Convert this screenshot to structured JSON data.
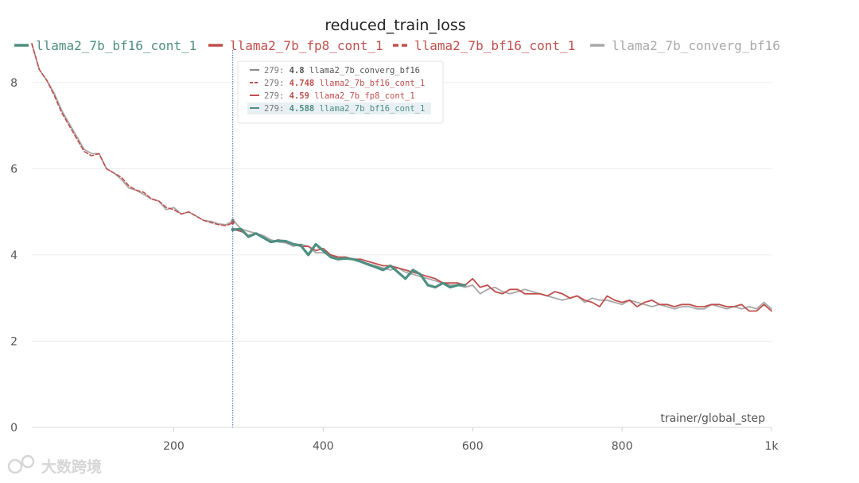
{
  "chart_data": {
    "type": "line",
    "title": "reduced_train_loss",
    "xlabel": "trainer/global_step",
    "ylabel": "",
    "xlim": [
      10,
      1000
    ],
    "ylim": [
      0,
      8.9
    ],
    "xticks": [
      200,
      400,
      600,
      800,
      1000
    ],
    "xtick_labels": [
      "200",
      "400",
      "600",
      "800",
      "1k"
    ],
    "yticks": [
      0,
      2,
      4,
      6,
      8
    ],
    "ytick_labels": [
      "0",
      "2",
      "4",
      "6",
      "8"
    ],
    "grid": true,
    "legend_position": "top",
    "series": [
      {
        "name": "llama2_7b_converg_bf16",
        "color": "#a9a9a9",
        "dash": "solid",
        "x": [
          10,
          20,
          30,
          40,
          50,
          60,
          70,
          80,
          90,
          100,
          110,
          120,
          130,
          140,
          150,
          160,
          170,
          180,
          190,
          200,
          210,
          220,
          230,
          240,
          250,
          260,
          270,
          280,
          290,
          300,
          310,
          320,
          330,
          340,
          350,
          360,
          370,
          380,
          390,
          400,
          410,
          420,
          430,
          440,
          450,
          460,
          470,
          480,
          490,
          500,
          510,
          520,
          530,
          540,
          550,
          560,
          570,
          580,
          590,
          600,
          610,
          620,
          630,
          640,
          650,
          660,
          670,
          680,
          690,
          700,
          710,
          720,
          730,
          740,
          750,
          760,
          770,
          780,
          790,
          800,
          810,
          820,
          830,
          840,
          850,
          860,
          870,
          880,
          890,
          900,
          910,
          920,
          930,
          940,
          950,
          960,
          970,
          980,
          990,
          1000
        ],
        "y": [
          8.9,
          8.3,
          8.05,
          7.75,
          7.35,
          7.05,
          6.75,
          6.45,
          6.35,
          6.35,
          6.0,
          5.9,
          5.75,
          5.55,
          5.5,
          5.4,
          5.3,
          5.25,
          5.05,
          5.1,
          4.95,
          5.0,
          4.9,
          4.8,
          4.78,
          4.72,
          4.7,
          4.8,
          4.6,
          4.55,
          4.5,
          4.45,
          4.35,
          4.3,
          4.28,
          4.2,
          4.25,
          4.2,
          4.05,
          4.05,
          4.0,
          3.95,
          3.95,
          3.9,
          3.85,
          3.8,
          3.75,
          3.7,
          3.65,
          3.7,
          3.6,
          3.55,
          3.5,
          3.45,
          3.4,
          3.35,
          3.3,
          3.3,
          3.25,
          3.3,
          3.1,
          3.2,
          3.25,
          3.15,
          3.1,
          3.15,
          3.2,
          3.15,
          3.1,
          3.05,
          3.0,
          2.95,
          3.0,
          3.05,
          2.9,
          3.0,
          2.95,
          2.95,
          2.9,
          2.85,
          2.95,
          2.9,
          2.85,
          2.8,
          2.85,
          2.8,
          2.75,
          2.8,
          2.8,
          2.75,
          2.75,
          2.85,
          2.8,
          2.75,
          2.8,
          2.75,
          2.8,
          2.75,
          2.9,
          2.75
        ]
      },
      {
        "name": "llama2_7b_bf16_cont_1",
        "color": "#c0504d",
        "dash": "dashed",
        "x": [
          10,
          20,
          30,
          40,
          50,
          60,
          70,
          80,
          90,
          100,
          110,
          120,
          130,
          140,
          150,
          160,
          170,
          180,
          190,
          200,
          210,
          220,
          230,
          240,
          250,
          260,
          270,
          280
        ],
        "y": [
          8.9,
          8.3,
          8.05,
          7.7,
          7.3,
          7.0,
          6.7,
          6.4,
          6.3,
          6.35,
          6.0,
          5.9,
          5.8,
          5.6,
          5.5,
          5.45,
          5.3,
          5.25,
          5.1,
          5.05,
          4.95,
          5.0,
          4.9,
          4.8,
          4.75,
          4.7,
          4.68,
          4.748
        ]
      },
      {
        "name": "llama2_7b_fp8_cont_1",
        "color": "#c0504d",
        "dash": "solid",
        "x": [
          279,
          290,
          300,
          310,
          320,
          330,
          340,
          350,
          360,
          370,
          380,
          390,
          400,
          410,
          420,
          430,
          440,
          450,
          460,
          470,
          480,
          490,
          500,
          510,
          520,
          530,
          540,
          550,
          560,
          570,
          580,
          590,
          600,
          610,
          620,
          630,
          640,
          650,
          660,
          670,
          680,
          690,
          700,
          710,
          720,
          730,
          740,
          750,
          760,
          770,
          780,
          790,
          800,
          810,
          820,
          830,
          840,
          850,
          860,
          870,
          880,
          890,
          900,
          910,
          920,
          930,
          940,
          950,
          960,
          970,
          980,
          990,
          1000
        ],
        "y": [
          4.59,
          4.55,
          4.45,
          4.5,
          4.4,
          4.3,
          4.35,
          4.3,
          4.25,
          4.2,
          4.2,
          4.1,
          4.15,
          4.0,
          3.95,
          3.95,
          3.9,
          3.9,
          3.85,
          3.8,
          3.75,
          3.75,
          3.7,
          3.65,
          3.6,
          3.55,
          3.5,
          3.45,
          3.35,
          3.35,
          3.35,
          3.3,
          3.45,
          3.25,
          3.3,
          3.15,
          3.1,
          3.2,
          3.2,
          3.1,
          3.1,
          3.1,
          3.05,
          3.15,
          3.1,
          3.0,
          3.05,
          2.95,
          2.9,
          2.8,
          3.05,
          2.95,
          2.9,
          2.95,
          2.8,
          2.9,
          2.95,
          2.85,
          2.85,
          2.8,
          2.85,
          2.85,
          2.8,
          2.8,
          2.85,
          2.85,
          2.8,
          2.8,
          2.85,
          2.7,
          2.7,
          2.85,
          2.7
        ]
      },
      {
        "name": "llama2_7b_bf16_cont_1",
        "color": "#4e8f82",
        "dash": "solid",
        "x": [
          279,
          290,
          300,
          310,
          320,
          330,
          340,
          350,
          360,
          370,
          380,
          390,
          400,
          410,
          420,
          430,
          440,
          450,
          460,
          470,
          480,
          490,
          500,
          510,
          520,
          530,
          540,
          550,
          560,
          570,
          580,
          590
        ],
        "y": [
          4.588,
          4.6,
          4.42,
          4.5,
          4.4,
          4.3,
          4.33,
          4.32,
          4.25,
          4.22,
          4.0,
          4.25,
          4.1,
          3.95,
          3.9,
          3.92,
          3.9,
          3.85,
          3.78,
          3.72,
          3.65,
          3.75,
          3.6,
          3.45,
          3.65,
          3.55,
          3.3,
          3.25,
          3.35,
          3.25,
          3.3,
          3.3
        ]
      }
    ],
    "hover": {
      "step": 279,
      "entries": [
        {
          "step": "279:",
          "value": "4.8",
          "name": "llama2_7b_converg_bf16",
          "color": "#8a8a8a",
          "dash": "solid"
        },
        {
          "step": "279:",
          "value": "4.748",
          "name": "llama2_7b_bf16_cont_1",
          "color": "#c0504d",
          "dash": "dashed"
        },
        {
          "step": "279:",
          "value": "4.59",
          "name": "llama2_7b_fp8_cont_1",
          "color": "#c0504d",
          "dash": "solid"
        },
        {
          "step": "279:",
          "value": "4.588",
          "name": "llama2_7b_bf16_cont_1",
          "color": "#4e8f82",
          "dash": "solid"
        }
      ]
    },
    "legend": [
      {
        "name": "llama2_7b_bf16_cont_1",
        "color": "#4e8f82",
        "dash": "solid"
      },
      {
        "name": "llama2_7b_fp8_cont_1",
        "color": "#c0504d",
        "dash": "solid"
      },
      {
        "name": "llama2_7b_bf16_cont_1",
        "color": "#c0504d",
        "dash": "dashed"
      },
      {
        "name": "llama2_7b_converg_bf16",
        "color": "#a9a9a9",
        "dash": "solid"
      }
    ]
  },
  "watermark": "大数跨境"
}
